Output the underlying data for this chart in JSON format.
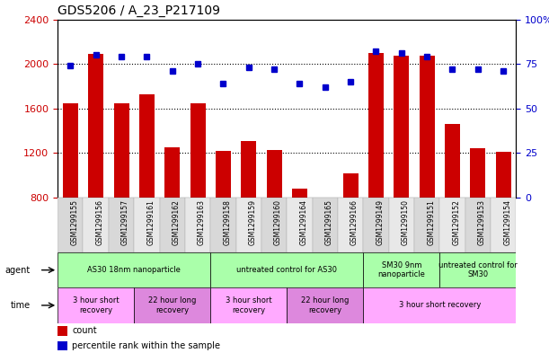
{
  "title": "GDS5206 / A_23_P217109",
  "samples": [
    "GSM1299155",
    "GSM1299156",
    "GSM1299157",
    "GSM1299161",
    "GSM1299162",
    "GSM1299163",
    "GSM1299158",
    "GSM1299159",
    "GSM1299160",
    "GSM1299164",
    "GSM1299165",
    "GSM1299166",
    "GSM1299149",
    "GSM1299150",
    "GSM1299151",
    "GSM1299152",
    "GSM1299153",
    "GSM1299154"
  ],
  "counts": [
    1650,
    2090,
    1650,
    1730,
    1255,
    1650,
    1220,
    1310,
    1230,
    880,
    790,
    1020,
    2100,
    2075,
    2075,
    1460,
    1245,
    1210
  ],
  "percentiles": [
    74,
    80,
    79,
    79,
    71,
    75,
    64,
    73,
    72,
    64,
    62,
    65,
    82,
    81,
    79,
    72,
    72,
    71
  ],
  "ylim_left": [
    800,
    2400
  ],
  "ylim_right": [
    0,
    100
  ],
  "yticks_left": [
    800,
    1200,
    1600,
    2000,
    2400
  ],
  "yticks_right": [
    0,
    25,
    50,
    75,
    100
  ],
  "bar_color": "#cc0000",
  "dot_color": "#0000cc",
  "agent_groups": [
    {
      "label": "AS30 18nm nanoparticle",
      "start": 0,
      "end": 6,
      "color": "#aaffaa"
    },
    {
      "label": "untreated control for AS30",
      "start": 6,
      "end": 12,
      "color": "#aaffaa"
    },
    {
      "label": "SM30 9nm\nnanoparticle",
      "start": 12,
      "end": 15,
      "color": "#aaffaa"
    },
    {
      "label": "untreated control for\nSM30",
      "start": 15,
      "end": 18,
      "color": "#aaffaa"
    }
  ],
  "time_groups": [
    {
      "label": "3 hour short\nrecovery",
      "start": 0,
      "end": 3,
      "color": "#ffaaff"
    },
    {
      "label": "22 hour long\nrecovery",
      "start": 3,
      "end": 6,
      "color": "#dd88dd"
    },
    {
      "label": "3 hour short\nrecovery",
      "start": 6,
      "end": 9,
      "color": "#ffaaff"
    },
    {
      "label": "22 hour long\nrecovery",
      "start": 9,
      "end": 12,
      "color": "#dd88dd"
    },
    {
      "label": "3 hour short recovery",
      "start": 12,
      "end": 18,
      "color": "#ffaaff"
    }
  ]
}
